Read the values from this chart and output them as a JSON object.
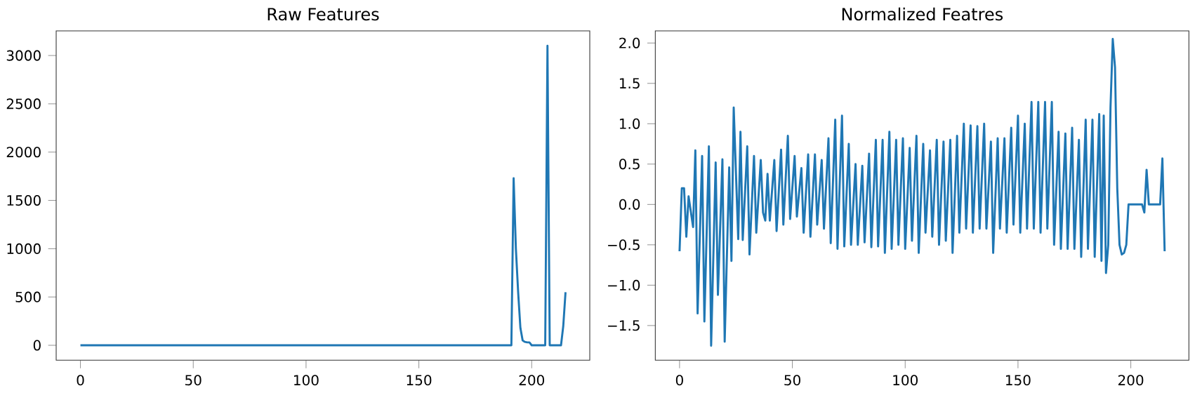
{
  "chart_data": [
    {
      "type": "line",
      "title": "Raw Features",
      "x": [
        0,
        191,
        192,
        193,
        194,
        195,
        196,
        197,
        198,
        199,
        200,
        206,
        207,
        208,
        213,
        214,
        215
      ],
      "series": [
        {
          "color": "#1f77b4",
          "values": [
            0,
            0,
            1730,
            1000,
            550,
            180,
            50,
            35,
            30,
            30,
            0,
            0,
            3100,
            0,
            0,
            200,
            550
          ]
        }
      ],
      "xlim": [
        -10.75,
        225.75
      ],
      "ylim": [
        -155,
        3255
      ],
      "xticks": [
        0,
        50,
        100,
        150,
        200
      ],
      "yticks": [
        0,
        500,
        1000,
        1500,
        2000,
        2500,
        3000
      ]
    },
    {
      "type": "line",
      "title": "Normalized Featres",
      "x": [
        0,
        1,
        2,
        3,
        4,
        6,
        7,
        8,
        10,
        11,
        13,
        14,
        16,
        17,
        19,
        20,
        22,
        23,
        24,
        26,
        27,
        28,
        30,
        31,
        33,
        34,
        36,
        37,
        38,
        39,
        40,
        42,
        43,
        45,
        46,
        48,
        49,
        51,
        52,
        54,
        55,
        57,
        58,
        60,
        61,
        63,
        64,
        66,
        67,
        69,
        70,
        72,
        73,
        75,
        76,
        78,
        79,
        81,
        82,
        84,
        85,
        87,
        88,
        90,
        91,
        93,
        94,
        96,
        97,
        99,
        100,
        102,
        103,
        105,
        106,
        108,
        109,
        111,
        112,
        114,
        115,
        117,
        118,
        120,
        121,
        123,
        124,
        126,
        127,
        129,
        130,
        132,
        133,
        135,
        136,
        138,
        139,
        141,
        142,
        144,
        145,
        147,
        148,
        150,
        151,
        153,
        154,
        156,
        157,
        159,
        160,
        162,
        163,
        165,
        166,
        168,
        169,
        171,
        172,
        174,
        175,
        177,
        178,
        180,
        181,
        183,
        184,
        186,
        187,
        188,
        189,
        190,
        191,
        192,
        193,
        194,
        195,
        196,
        197,
        198,
        199,
        205,
        206,
        207,
        208,
        213,
        214,
        215
      ],
      "series": [
        {
          "color": "#1f77b4",
          "values": [
            -0.58,
            0.2,
            0.2,
            -0.4,
            0.1,
            -0.28,
            0.67,
            -1.35,
            0.6,
            -1.45,
            0.72,
            -1.75,
            0.52,
            -1.12,
            0.56,
            -1.7,
            0.46,
            -0.7,
            1.2,
            -0.43,
            0.9,
            -0.44,
            0.72,
            -0.62,
            0.6,
            -0.35,
            0.55,
            -0.1,
            -0.2,
            0.38,
            -0.2,
            0.55,
            -0.33,
            0.68,
            -0.25,
            0.85,
            -0.18,
            0.6,
            -0.15,
            0.45,
            -0.35,
            0.62,
            -0.4,
            0.62,
            -0.25,
            0.55,
            -0.3,
            0.82,
            -0.48,
            1.05,
            -0.55,
            1.1,
            -0.52,
            0.75,
            -0.5,
            0.5,
            -0.5,
            0.48,
            -0.47,
            0.63,
            -0.53,
            0.8,
            -0.52,
            0.8,
            -0.6,
            0.9,
            -0.55,
            0.8,
            -0.5,
            0.82,
            -0.55,
            0.7,
            -0.45,
            0.85,
            -0.6,
            0.75,
            -0.35,
            0.67,
            -0.4,
            0.8,
            -0.5,
            0.78,
            -0.45,
            0.8,
            -0.6,
            0.85,
            -0.35,
            1.0,
            -0.3,
            0.98,
            -0.35,
            0.97,
            -0.3,
            1.0,
            -0.3,
            0.78,
            -0.6,
            0.82,
            -0.3,
            0.82,
            -0.35,
            0.95,
            -0.25,
            1.1,
            -0.35,
            1.0,
            -0.3,
            1.27,
            -0.3,
            1.27,
            -0.35,
            1.27,
            -0.3,
            1.27,
            -0.5,
            0.9,
            -0.55,
            0.88,
            -0.55,
            0.95,
            -0.55,
            0.8,
            -0.65,
            1.05,
            -0.55,
            1.05,
            -0.65,
            1.12,
            -0.7,
            1.1,
            -0.85,
            -0.5,
            1.2,
            2.05,
            1.7,
            0.2,
            -0.5,
            -0.62,
            -0.6,
            -0.5,
            0,
            0,
            -0.1,
            0.43,
            0,
            0,
            0.57,
            -0.58
          ]
        }
      ],
      "xlim": [
        -10.75,
        225.75
      ],
      "ylim": [
        -1.93,
        2.15
      ],
      "xticks": [
        0,
        50,
        100,
        150,
        200
      ],
      "yticks": [
        {
          "value": -1.5,
          "label": "−1.5"
        },
        {
          "value": -1.0,
          "label": "−1.0"
        },
        {
          "value": -0.5,
          "label": "−0.5"
        },
        {
          "value": 0,
          "label": "0.0"
        },
        {
          "value": 0.5,
          "label": "0.5"
        },
        {
          "value": 1.0,
          "label": "1.0"
        },
        {
          "value": 1.5,
          "label": "1.5"
        },
        {
          "value": 2.0,
          "label": "2.0"
        }
      ]
    }
  ]
}
